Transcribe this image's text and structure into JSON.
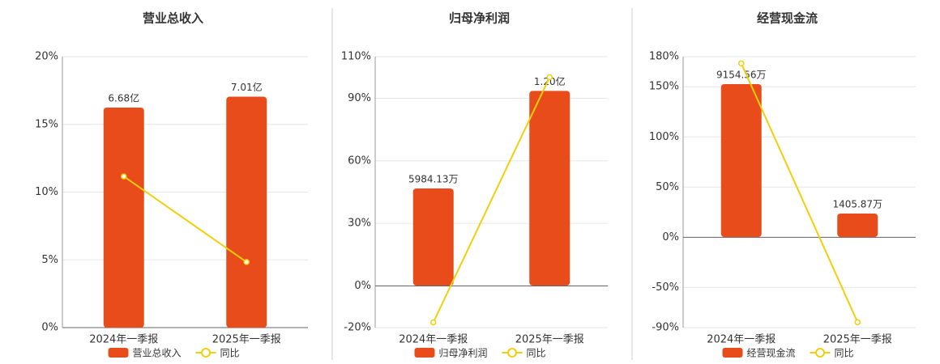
{
  "chart_data": [
    {
      "type": "combo",
      "title": "营业总收入",
      "categories": [
        "2024年一季报",
        "2025年一季报"
      ],
      "series": [
        {
          "name": "营业总收入",
          "type": "bar",
          "axis": "y2",
          "color": "#e84c1b",
          "values": [
            668000000,
            701000000
          ],
          "value_labels": [
            "6.68亿",
            "7.01亿"
          ]
        },
        {
          "name": "同比",
          "type": "line",
          "color": "#f2cf0b",
          "values": [
            11.16,
            4.84
          ]
        }
      ],
      "ylim": [
        0,
        20
      ],
      "yticks": [
        {
          "value": 0,
          "label": "0%"
        },
        {
          "value": 5,
          "label": "5%"
        },
        {
          "value": 10,
          "label": "10%"
        },
        {
          "value": 15,
          "label": "15%"
        },
        {
          "value": 20,
          "label": "20%"
        }
      ],
      "y2lim": [
        0,
        822700000
      ],
      "grid": true
    },
    {
      "type": "combo",
      "title": "归母净利润",
      "categories": [
        "2024年一季报",
        "2025年一季报"
      ],
      "series": [
        {
          "name": "归母净利润",
          "type": "bar",
          "axis": "y2",
          "color": "#e84c1b",
          "values": [
            59841300,
            120000000
          ],
          "value_labels": [
            "5984.13万",
            "1.20亿"
          ]
        },
        {
          "name": "同比",
          "type": "line",
          "color": "#f2cf0b",
          "values": [
            -17.5,
            100.1
          ]
        }
      ],
      "ylim": [
        -20,
        110
      ],
      "yticks": [
        {
          "value": -20,
          "label": "-20%"
        },
        {
          "value": 0,
          "label": "0%"
        },
        {
          "value": 30,
          "label": "30%"
        },
        {
          "value": 60,
          "label": "60%"
        },
        {
          "value": 90,
          "label": "90%"
        },
        {
          "value": 110,
          "label": "110%"
        }
      ],
      "y2lim": [
        -25930000,
        141130000
      ],
      "grid": true
    },
    {
      "type": "combo",
      "title": "经营现金流",
      "categories": [
        "2024年一季报",
        "2025年一季报"
      ],
      "series": [
        {
          "name": "经营现金流",
          "type": "bar",
          "axis": "y2",
          "color": "#e84c1b",
          "values": [
            91545600,
            14058700
          ],
          "value_labels": [
            "9154.56万",
            "1405.87万"
          ]
        },
        {
          "name": "同比",
          "type": "line",
          "color": "#f2cf0b",
          "values": [
            173.3,
            -84.6
          ]
        }
      ],
      "ylim": [
        -90,
        180
      ],
      "yticks": [
        {
          "value": -90,
          "label": "-90%"
        },
        {
          "value": -50,
          "label": "-50%"
        },
        {
          "value": 0,
          "label": "0%"
        },
        {
          "value": 50,
          "label": "50%"
        },
        {
          "value": 100,
          "label": "100%"
        },
        {
          "value": 150,
          "label": "150%"
        },
        {
          "value": 180,
          "label": "180%"
        }
      ],
      "y2lim": [
        -54250000,
        108020000
      ],
      "grid": true
    }
  ]
}
